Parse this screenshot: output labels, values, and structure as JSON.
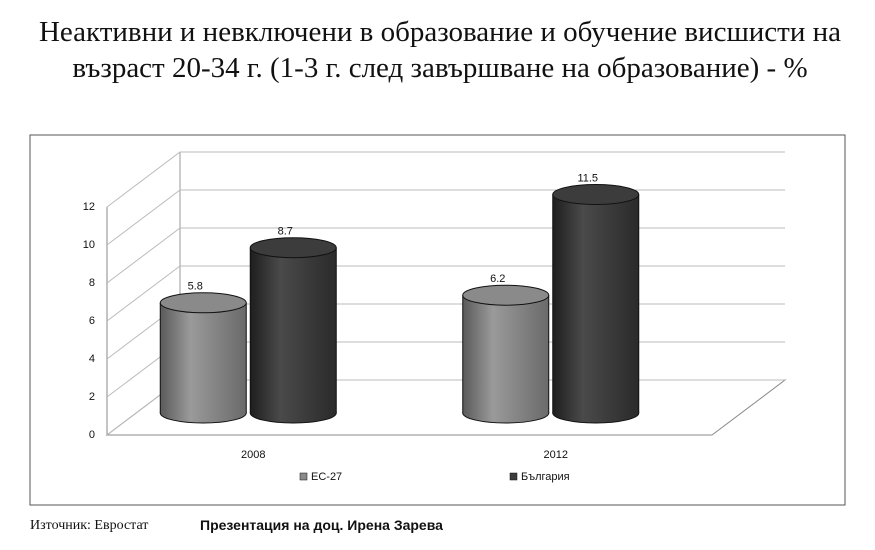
{
  "chart_data": {
    "type": "bar3d",
    "title": "Неактивни и невключени в образование и обучение висшисти на възраст 20-34 г. (1-3 г. след завършване на образование) - %",
    "categories": [
      "2008",
      "2012"
    ],
    "series": [
      {
        "name": "ЕС-27",
        "color": "#8a8a8a",
        "values": [
          5.8,
          6.2
        ]
      },
      {
        "name": "България",
        "color": "#3c3c3c",
        "values": [
          8.7,
          11.5
        ]
      }
    ],
    "ylim": [
      0,
      12
    ],
    "yticks": [
      0,
      2,
      4,
      6,
      8,
      10,
      12
    ],
    "grid": true,
    "source": "Източник: Евростат",
    "credit": "Презентация на доц. Ирена Зарева"
  }
}
